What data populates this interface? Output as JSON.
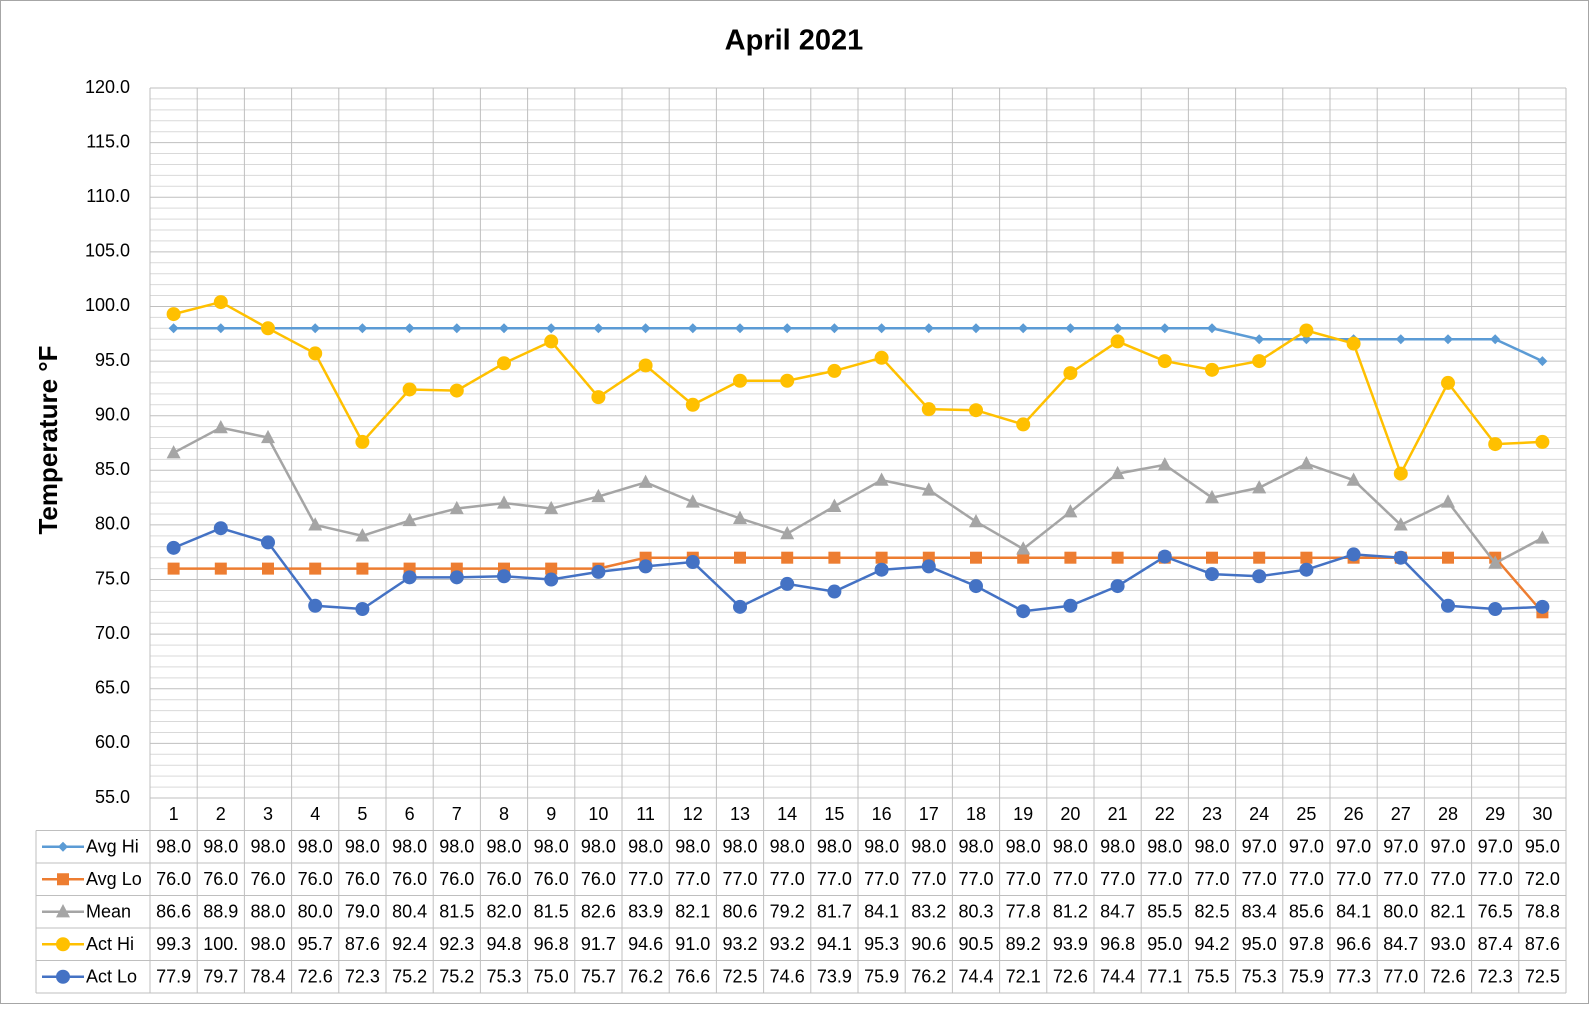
{
  "chart_data": {
    "type": "line",
    "title": "April 2021",
    "y_label": "Temperature °F",
    "categories": [
      "1",
      "2",
      "3",
      "4",
      "5",
      "6",
      "7",
      "8",
      "9",
      "10",
      "11",
      "12",
      "13",
      "14",
      "15",
      "16",
      "17",
      "18",
      "19",
      "20",
      "21",
      "22",
      "23",
      "24",
      "25",
      "26",
      "27",
      "28",
      "29",
      "30"
    ],
    "ylim": [
      55,
      120
    ],
    "yticks": [
      {
        "value": 55,
        "label": "55.0"
      },
      {
        "value": 60,
        "label": "60.0"
      },
      {
        "value": 65,
        "label": "65.0"
      },
      {
        "value": 70,
        "label": "70.0"
      },
      {
        "value": 75,
        "label": "75.0"
      },
      {
        "value": 80,
        "label": "80.0"
      },
      {
        "value": 85,
        "label": "85.0"
      },
      {
        "value": 90,
        "label": "90.0"
      },
      {
        "value": 95,
        "label": "95.0"
      },
      {
        "value": 100,
        "label": "100.0"
      },
      {
        "value": 105,
        "label": "105.0"
      },
      {
        "value": 110,
        "label": "110.0"
      },
      {
        "value": 115,
        "label": "115.0"
      },
      {
        "value": 120,
        "label": "120.0"
      }
    ],
    "grid": true,
    "series": [
      {
        "name": "Avg Hi",
        "color": "#5b9bd5",
        "marker": "diamond",
        "values": [
          98,
          98,
          98,
          98,
          98,
          98,
          98,
          98,
          98,
          98,
          98,
          98,
          98,
          98,
          98,
          98,
          98,
          98,
          98,
          98,
          98,
          98,
          98,
          97,
          97,
          97,
          97,
          97,
          97,
          95
        ],
        "value_labels": [
          "98.0",
          "98.0",
          "98.0",
          "98.0",
          "98.0",
          "98.0",
          "98.0",
          "98.0",
          "98.0",
          "98.0",
          "98.0",
          "98.0",
          "98.0",
          "98.0",
          "98.0",
          "98.0",
          "98.0",
          "98.0",
          "98.0",
          "98.0",
          "98.0",
          "98.0",
          "98.0",
          "97.0",
          "97.0",
          "97.0",
          "97.0",
          "97.0",
          "97.0",
          "95.0"
        ]
      },
      {
        "name": "Avg Lo",
        "color": "#ed7d31",
        "marker": "square",
        "values": [
          76,
          76,
          76,
          76,
          76,
          76,
          76,
          76,
          76,
          76,
          77,
          77,
          77,
          77,
          77,
          77,
          77,
          77,
          77,
          77,
          77,
          77,
          77,
          77,
          77,
          77,
          77,
          77,
          77,
          72
        ],
        "value_labels": [
          "76.0",
          "76.0",
          "76.0",
          "76.0",
          "76.0",
          "76.0",
          "76.0",
          "76.0",
          "76.0",
          "76.0",
          "77.0",
          "77.0",
          "77.0",
          "77.0",
          "77.0",
          "77.0",
          "77.0",
          "77.0",
          "77.0",
          "77.0",
          "77.0",
          "77.0",
          "77.0",
          "77.0",
          "77.0",
          "77.0",
          "77.0",
          "77.0",
          "77.0",
          "72.0"
        ]
      },
      {
        "name": "Mean",
        "color": "#a5a5a5",
        "marker": "triangle",
        "values": [
          86.6,
          88.9,
          88,
          80,
          79,
          80.4,
          81.5,
          82,
          81.5,
          82.6,
          83.9,
          82.1,
          80.6,
          79.2,
          81.7,
          84.1,
          83.2,
          80.3,
          77.8,
          81.2,
          84.7,
          85.5,
          82.5,
          83.4,
          85.6,
          84.1,
          80,
          82.1,
          76.5,
          78.8
        ],
        "value_labels": [
          "86.6",
          "88.9",
          "88.0",
          "80.0",
          "79.0",
          "80.4",
          "81.5",
          "82.0",
          "81.5",
          "82.6",
          "83.9",
          "82.1",
          "80.6",
          "79.2",
          "81.7",
          "84.1",
          "83.2",
          "80.3",
          "77.8",
          "81.2",
          "84.7",
          "85.5",
          "82.5",
          "83.4",
          "85.6",
          "84.1",
          "80.0",
          "82.1",
          "76.5",
          "78.8"
        ]
      },
      {
        "name": "Act Hi",
        "color": "#ffc000",
        "marker": "circle",
        "values": [
          99.3,
          100.4,
          98,
          95.7,
          87.6,
          92.4,
          92.3,
          94.8,
          96.8,
          91.7,
          94.6,
          91,
          93.2,
          93.2,
          94.1,
          95.3,
          90.6,
          90.5,
          89.2,
          93.9,
          96.8,
          95,
          94.2,
          95,
          97.8,
          96.6,
          84.7,
          93,
          87.4,
          87.6
        ],
        "value_labels": [
          "99.3",
          "100.",
          "98.0",
          "95.7",
          "87.6",
          "92.4",
          "92.3",
          "94.8",
          "96.8",
          "91.7",
          "94.6",
          "91.0",
          "93.2",
          "93.2",
          "94.1",
          "95.3",
          "90.6",
          "90.5",
          "89.2",
          "93.9",
          "96.8",
          "95.0",
          "94.2",
          "95.0",
          "97.8",
          "96.6",
          "84.7",
          "93.0",
          "87.4",
          "87.6"
        ]
      },
      {
        "name": "Act Lo",
        "color": "#4472c4",
        "marker": "circle",
        "values": [
          77.9,
          79.7,
          78.4,
          72.6,
          72.3,
          75.2,
          75.2,
          75.3,
          75,
          75.7,
          76.2,
          76.6,
          72.5,
          74.6,
          73.9,
          75.9,
          76.2,
          74.4,
          72.1,
          72.6,
          74.4,
          77.1,
          75.5,
          75.3,
          75.9,
          77.3,
          77,
          72.6,
          72.3,
          72.5
        ],
        "value_labels": [
          "77.9",
          "79.7",
          "78.4",
          "72.6",
          "72.3",
          "75.2",
          "75.2",
          "75.3",
          "75.0",
          "75.7",
          "76.2",
          "76.6",
          "72.5",
          "74.6",
          "73.9",
          "75.9",
          "76.2",
          "74.4",
          "72.1",
          "72.6",
          "74.4",
          "77.1",
          "75.5",
          "75.3",
          "75.9",
          "77.3",
          "77.0",
          "72.6",
          "72.3",
          "72.5"
        ]
      }
    ]
  }
}
